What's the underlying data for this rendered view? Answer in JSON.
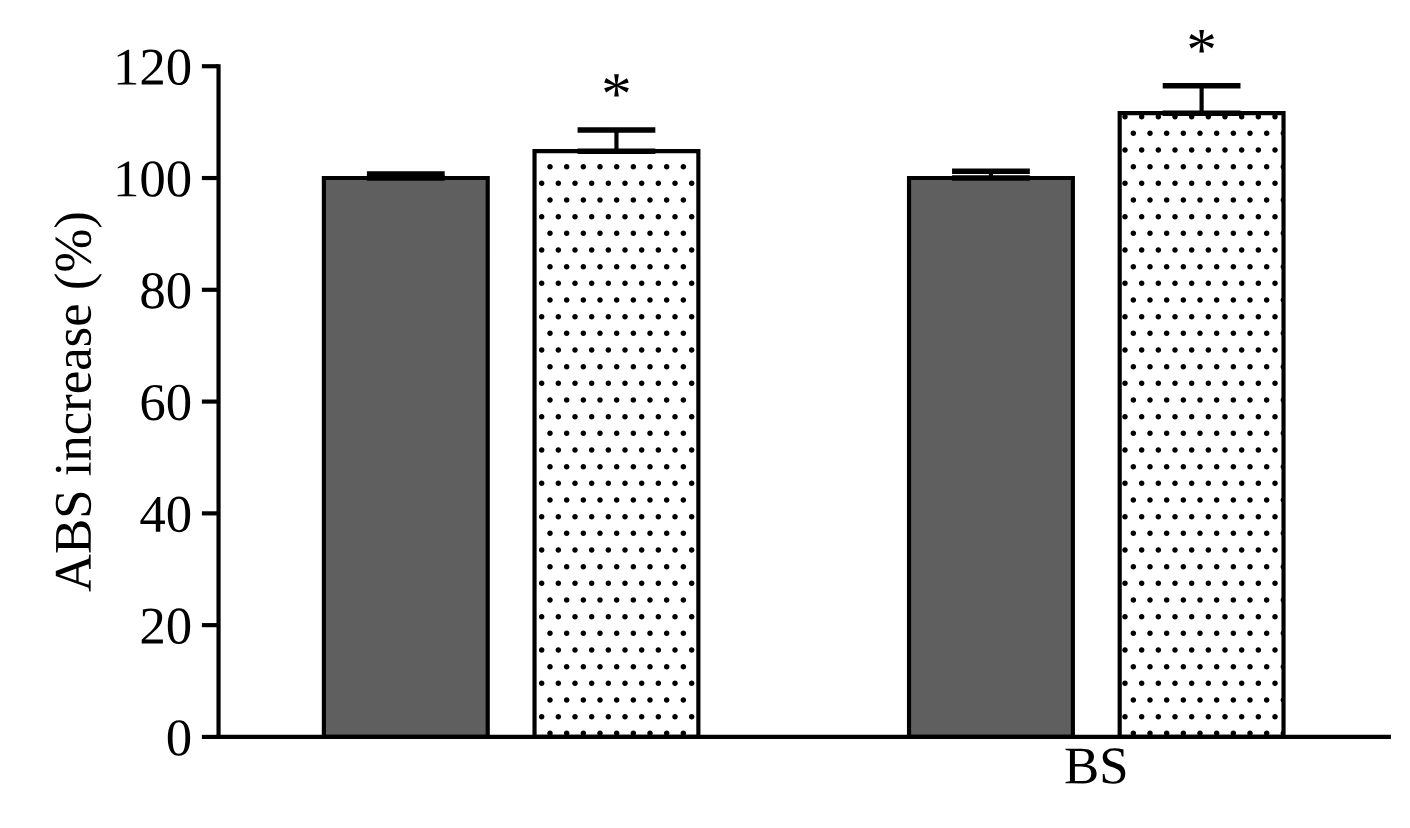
{
  "chart_data": {
    "type": "bar",
    "ylabel": "ABS increase (%)",
    "categories": [
      null,
      "BS"
    ],
    "series": [
      {
        "color": "#5f5f5f",
        "values": [
          100,
          100
        ],
        "errors": [
          0.7,
          1.2
        ]
      },
      {
        "color": "#ffffff",
        "values": [
          104.8,
          111.6
        ],
        "errors": [
          3.8,
          4.9
        ]
      }
    ],
    "annotations": [
      "*",
      "*"
    ],
    "ylim": [
      0,
      120
    ],
    "yticks": [
      0,
      20,
      40,
      60,
      80,
      100,
      120
    ],
    "grid": false,
    "legend": false
  }
}
